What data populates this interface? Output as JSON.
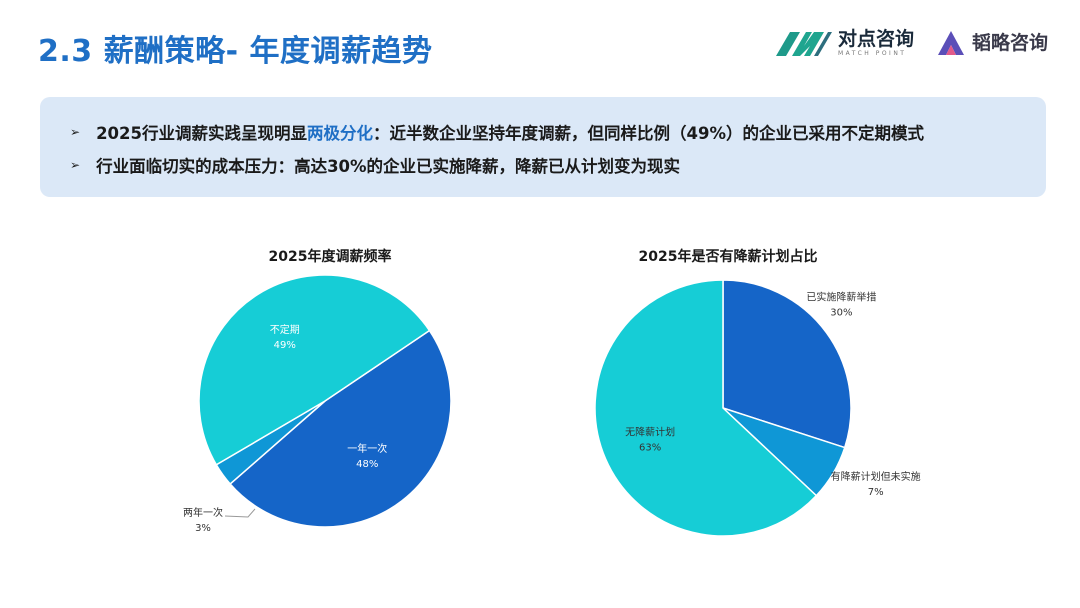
{
  "header": {
    "title": "2.3 薪酬策略- 年度调薪趋势",
    "logos": [
      {
        "name": "对点咨询",
        "subtitle": "MATCH POINT"
      },
      {
        "name": "韬略咨询"
      }
    ]
  },
  "summary": {
    "bullets": [
      {
        "before": "2025行业调薪实践呈现明显",
        "highlight": "两极分化",
        "after": "：近半数企业坚持年度调薪，但同样比例（49%）的企业已采用不定期模式"
      },
      {
        "before": "行业面临切实的成本压力：高达30%的企业已实施降薪，降薪已从计划变为现实",
        "highlight": "",
        "after": ""
      }
    ]
  },
  "colors": {
    "dark_blue": "#1565c8",
    "mid_blue": "#0f97d6",
    "cyan": "#16cdd6",
    "accent": "#1f6fc5"
  },
  "chart_data": [
    {
      "type": "pie",
      "title": "2025年度调薪频率",
      "slices": [
        {
          "label": "一年一次",
          "value": 48,
          "display": "48%",
          "color": "#1565c8"
        },
        {
          "label": "两年一次",
          "value": 3,
          "display": "3%",
          "color": "#0f97d6"
        },
        {
          "label": "不定期",
          "value": 49,
          "display": "49%",
          "color": "#16cdd6"
        }
      ]
    },
    {
      "type": "pie",
      "title": "2025年是否有降薪计划占比",
      "slices": [
        {
          "label": "已实施降薪举措",
          "value": 30,
          "display": "30%",
          "color": "#1565c8"
        },
        {
          "label": "有降薪计划但未实施",
          "value": 7,
          "display": "7%",
          "color": "#0f97d6"
        },
        {
          "label": "无降薪计划",
          "value": 63,
          "display": "63%",
          "color": "#16cdd6"
        }
      ]
    }
  ]
}
